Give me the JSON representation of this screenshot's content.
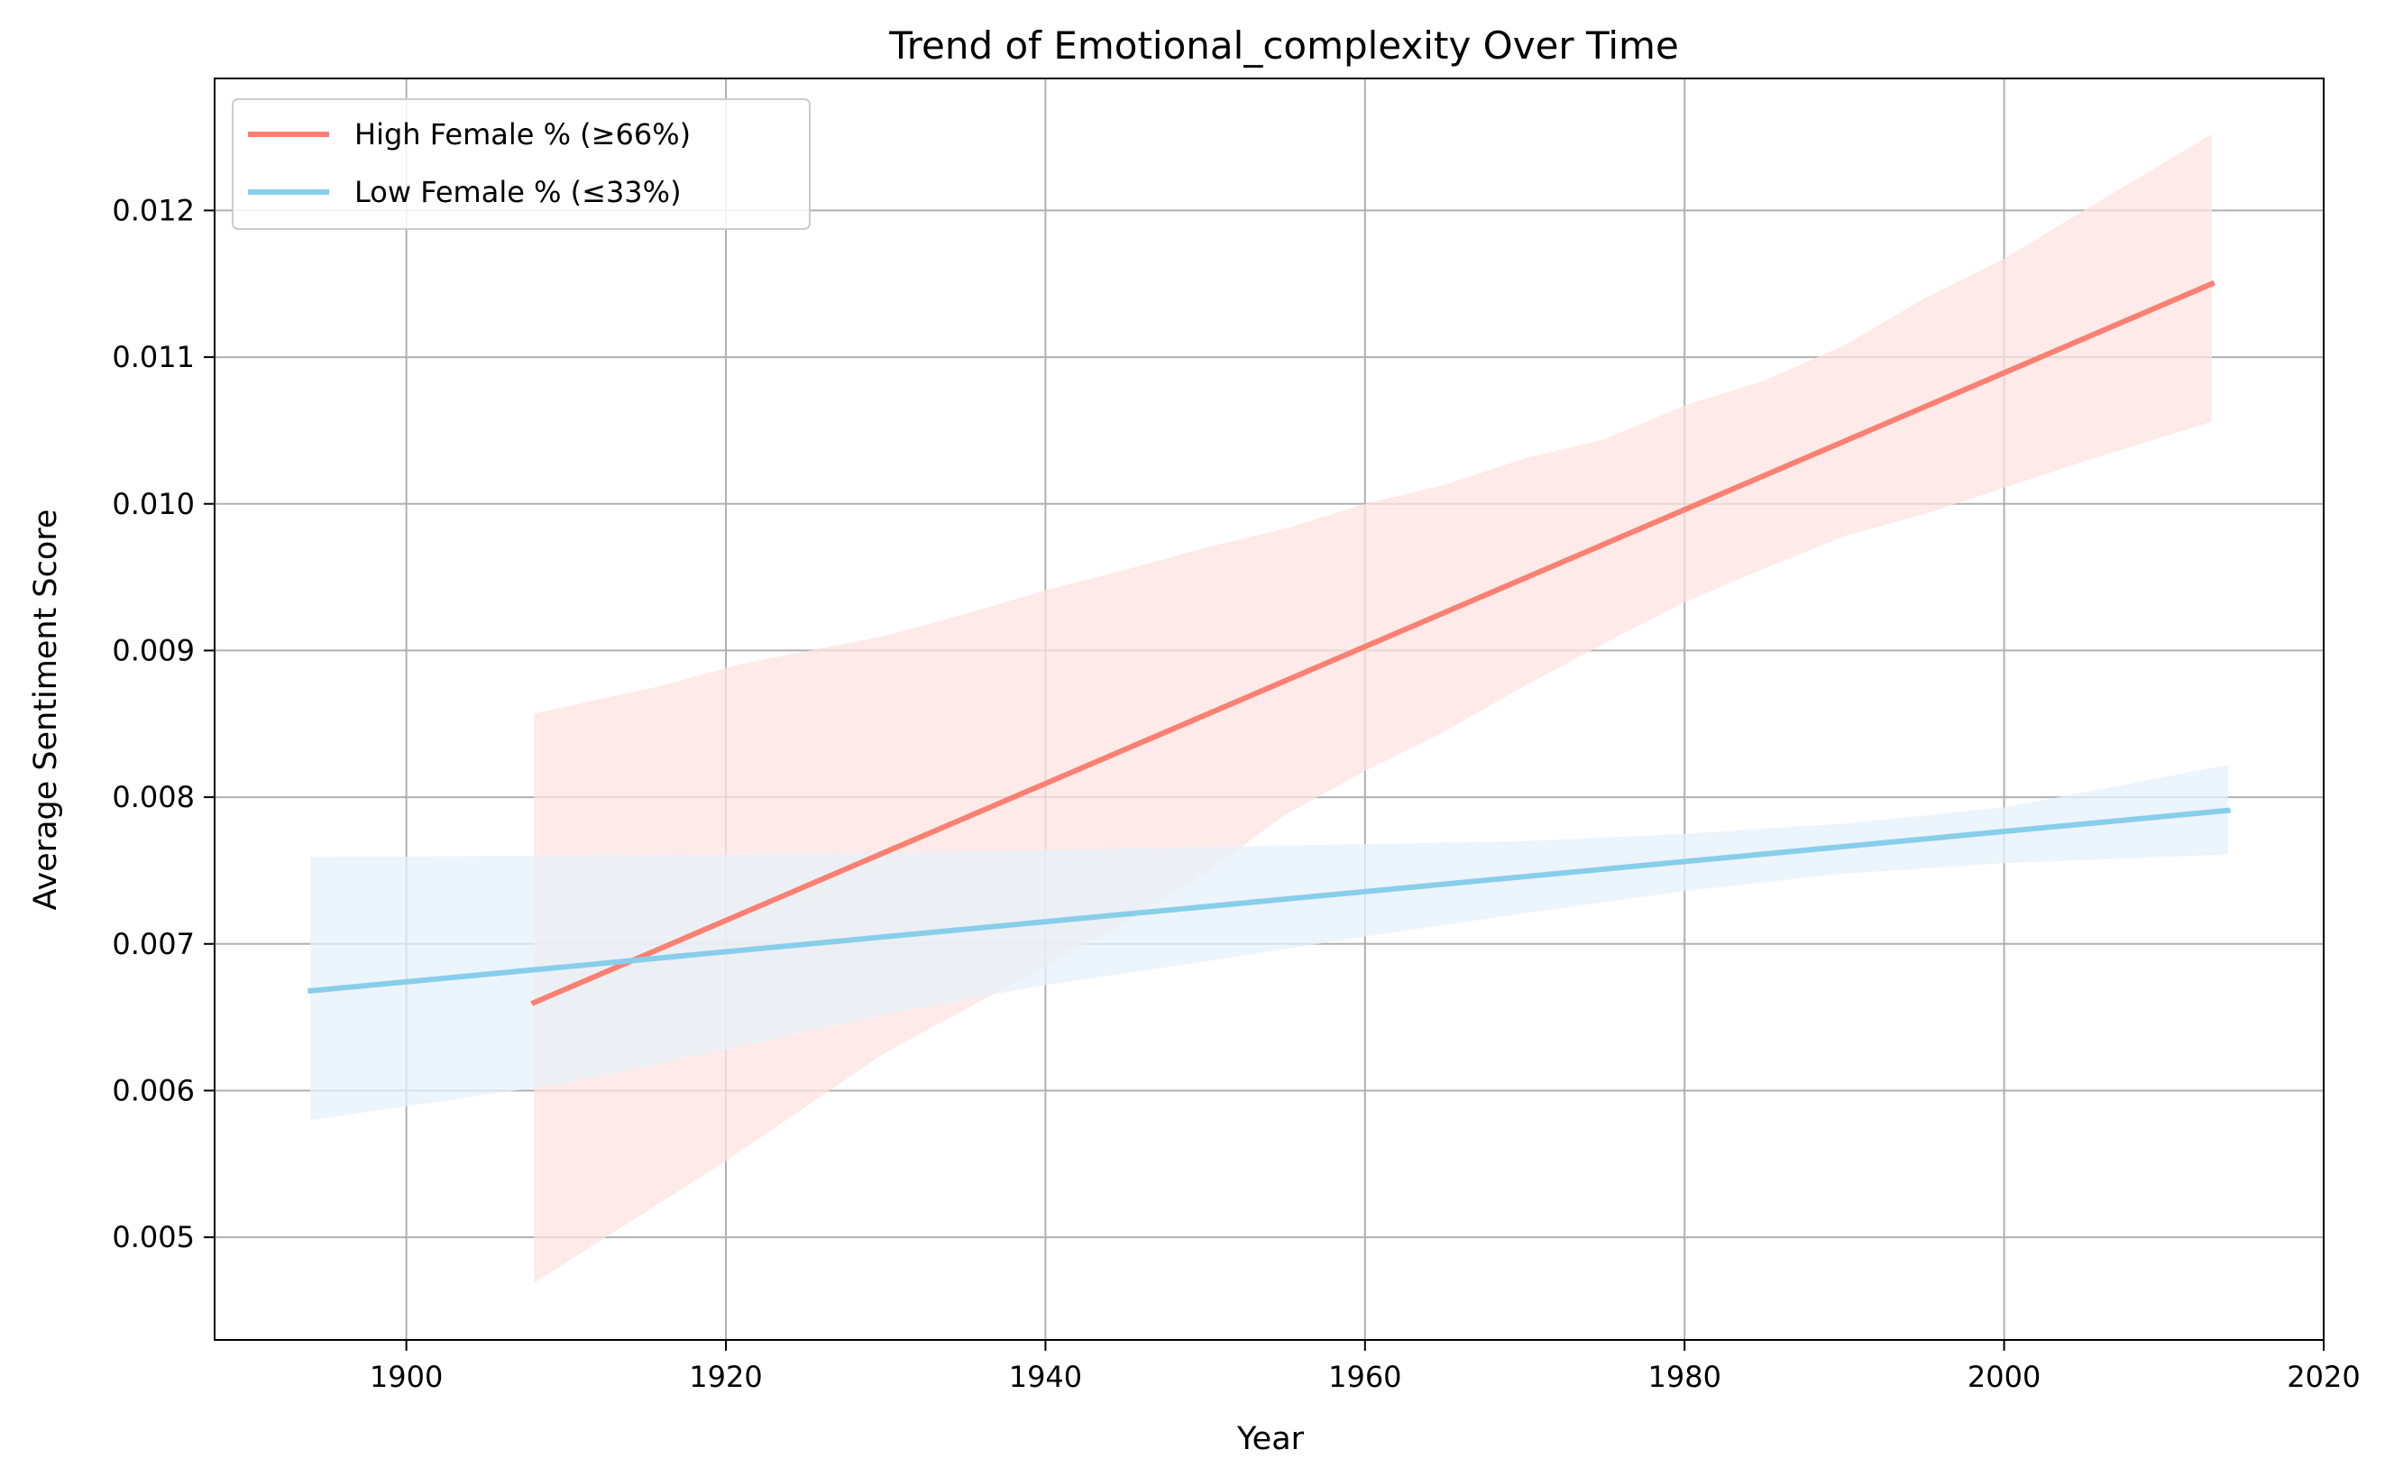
{
  "chart_data": {
    "type": "line",
    "title": "Trend of Emotional_complexity Over Time",
    "xlabel": "Year",
    "ylabel": "Average Sentiment Score",
    "xlim": [
      1888,
      2020
    ],
    "ylim": [
      0.0043,
      0.0129
    ],
    "xticks": [
      1900,
      1920,
      1940,
      1960,
      1980,
      2000,
      2020
    ],
    "yticks": [
      0.005,
      0.006,
      0.007,
      0.008,
      0.009,
      0.01,
      0.011,
      0.012
    ],
    "xtick_labels": [
      "1900",
      "1920",
      "1940",
      "1960",
      "1980",
      "2000",
      "2020"
    ],
    "ytick_labels": [
      "0.005",
      "0.006",
      "0.007",
      "0.008",
      "0.009",
      "0.010",
      "0.011",
      "0.012"
    ],
    "grid": true,
    "legend_position": "top-left",
    "series": [
      {
        "name": "High Female % (≥66%)",
        "color": "#fa8072",
        "band_color": "#fde3e0",
        "x": [
          1908,
          2013
        ],
        "y": [
          0.0066,
          0.0115
        ],
        "ci_upper": [
          [
            1908,
            0.00857
          ],
          [
            1916,
            0.00876
          ],
          [
            1921,
            0.00891
          ],
          [
            1930,
            0.0091
          ],
          [
            1935,
            0.00925
          ],
          [
            1940,
            0.00941
          ],
          [
            1945,
            0.00955
          ],
          [
            1950,
            0.0097
          ],
          [
            1955,
            0.00983
          ],
          [
            1960,
            0.01
          ],
          [
            1965,
            0.01013
          ],
          [
            1970,
            0.01031
          ],
          [
            1975,
            0.01044
          ],
          [
            1980,
            0.01067
          ],
          [
            1985,
            0.01084
          ],
          [
            1990,
            0.01108
          ],
          [
            1995,
            0.0114
          ],
          [
            2000,
            0.01167
          ],
          [
            2005,
            0.012
          ],
          [
            2013,
            0.01252
          ]
        ],
        "ci_lower": [
          [
            1908,
            0.00469
          ],
          [
            1920,
            0.00552
          ],
          [
            1930,
            0.00626
          ],
          [
            1940,
            0.00685
          ],
          [
            1945,
            0.00715
          ],
          [
            1950,
            0.00748
          ],
          [
            1955,
            0.00788
          ],
          [
            1960,
            0.00818
          ],
          [
            1965,
            0.00845
          ],
          [
            1970,
            0.00876
          ],
          [
            1975,
            0.00905
          ],
          [
            1980,
            0.00933
          ],
          [
            1985,
            0.00956
          ],
          [
            1990,
            0.00978
          ],
          [
            1995,
            0.00993
          ],
          [
            2000,
            0.01011
          ],
          [
            2005,
            0.01029
          ],
          [
            2013,
            0.01056
          ]
        ]
      },
      {
        "name": "Low Female % (≤33%)",
        "color": "#87ceeb",
        "band_color": "#e6f2fa",
        "x": [
          1894,
          2014
        ],
        "y": [
          0.00668,
          0.00791
        ],
        "ci_upper": [
          [
            1894,
            0.00759
          ],
          [
            1920,
            0.00761
          ],
          [
            1940,
            0.00764
          ],
          [
            1960,
            0.00768
          ],
          [
            1970,
            0.0077
          ],
          [
            1980,
            0.00775
          ],
          [
            1990,
            0.00782
          ],
          [
            2000,
            0.00793
          ],
          [
            2014,
            0.00822
          ]
        ],
        "ci_lower": [
          [
            1894,
            0.0058
          ],
          [
            1910,
            0.00605
          ],
          [
            1920,
            0.00628
          ],
          [
            1930,
            0.00652
          ],
          [
            1940,
            0.00672
          ],
          [
            1950,
            0.00688
          ],
          [
            1960,
            0.00705
          ],
          [
            1970,
            0.00721
          ],
          [
            1980,
            0.00736
          ],
          [
            1990,
            0.00748
          ],
          [
            2000,
            0.00755
          ],
          [
            2014,
            0.00761
          ]
        ]
      }
    ]
  }
}
